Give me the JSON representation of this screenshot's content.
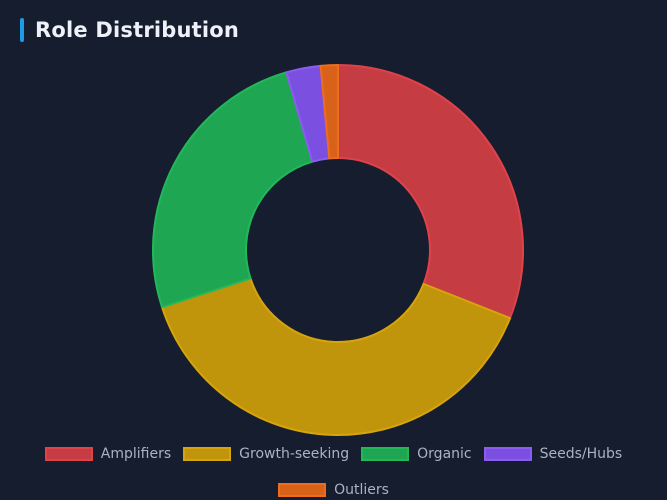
{
  "header": {
    "title": "Role Distribution",
    "accent_color": "#1e9be8"
  },
  "chart_data": {
    "type": "pie",
    "variant": "doughnut",
    "title": "Role Distribution",
    "categories": [
      "Amplifiers",
      "Growth-seeking",
      "Organic",
      "Seeds/Hubs",
      "Outliers"
    ],
    "values": [
      31,
      39,
      25.5,
      3,
      1.5
    ],
    "unit": "%",
    "colors": [
      "#c53d43",
      "#c0950c",
      "#1fa653",
      "#7b4fe0",
      "#d9621b"
    ],
    "border_colors": [
      "#e0424a",
      "#d6a40c",
      "#22b85a",
      "#8a5cf0",
      "#ee6d1c"
    ],
    "legend_position": "bottom"
  }
}
